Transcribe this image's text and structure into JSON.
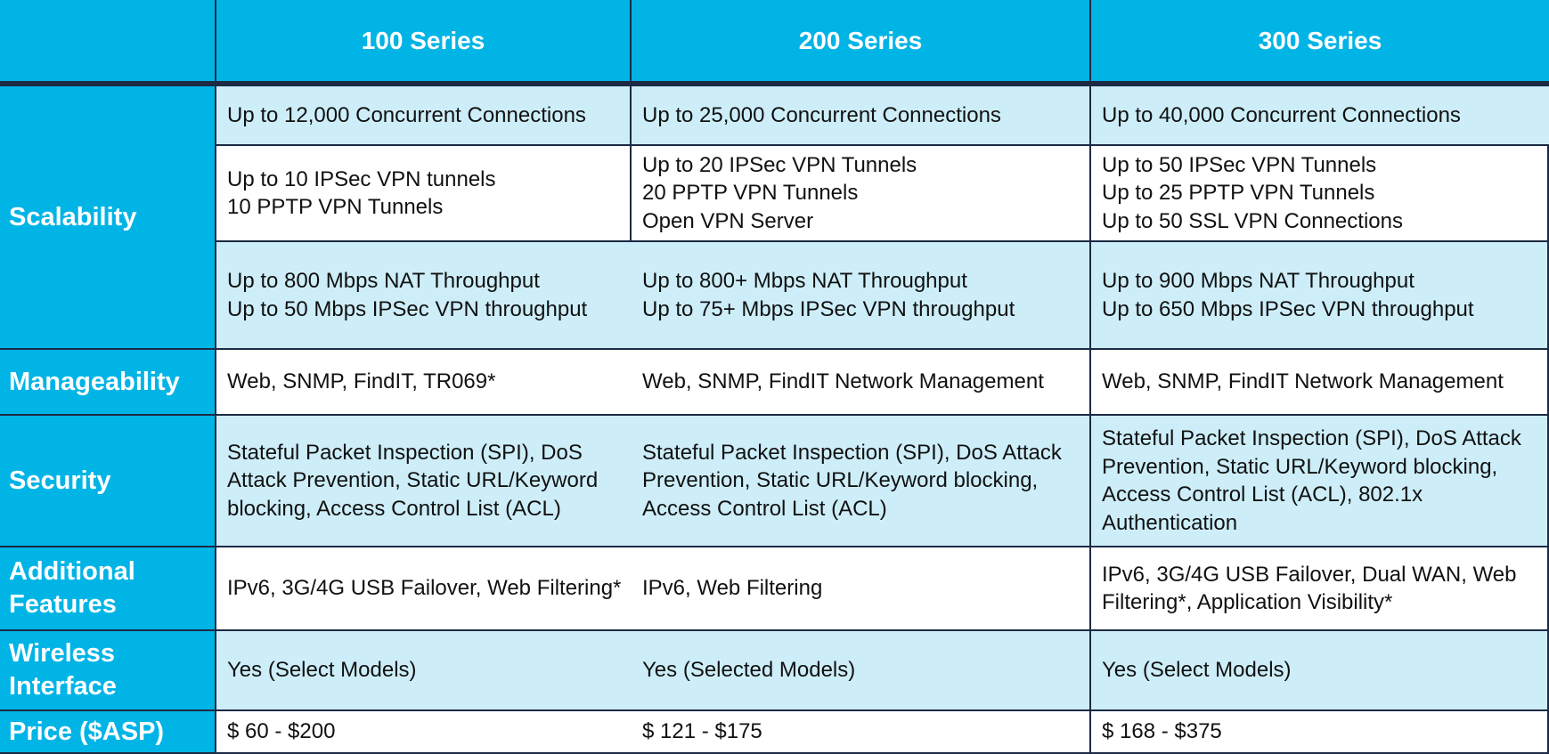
{
  "header": {
    "corner": "",
    "col1": "100 Series",
    "col2": "200 Series",
    "col3": "300 Series"
  },
  "rows": {
    "scalability": {
      "label": "Scalability",
      "connections": [
        "Up to 12,000 Concurrent Connections",
        "Up to 25,000 Concurrent Connections",
        "Up to 40,000 Concurrent Connections"
      ],
      "vpn": [
        [
          "Up to 10 IPSec VPN tunnels",
          "10 PPTP VPN Tunnels"
        ],
        [
          "Up to 20 IPSec VPN Tunnels",
          "20 PPTP VPN Tunnels",
          "Open VPN Server"
        ],
        [
          "Up to 50 IPSec VPN Tunnels",
          "Up to 25 PPTP VPN Tunnels",
          "Up to 50 SSL VPN Connections"
        ]
      ],
      "throughput": [
        [
          "Up to 800 Mbps NAT Throughput",
          "Up to 50 Mbps IPSec VPN throughput"
        ],
        [
          "Up to 800+ Mbps NAT Throughput",
          "Up to 75+ Mbps IPSec VPN throughput"
        ],
        [
          "Up to 900 Mbps NAT Throughput",
          "Up to 650 Mbps IPSec VPN throughput"
        ]
      ]
    },
    "manageability": {
      "label": "Manageability",
      "values": [
        "Web, SNMP, FindIT, TR069*",
        "Web, SNMP, FindIT Network Management",
        "Web, SNMP, FindIT Network Management"
      ]
    },
    "security": {
      "label": "Security",
      "values": [
        "Stateful Packet Inspection (SPI), DoS Attack Prevention, Static URL/Keyword blocking, Access Control List (ACL)",
        "Stateful Packet Inspection (SPI), DoS Attack Prevention, Static URL/Keyword blocking, Access Control List (ACL)",
        "Stateful Packet Inspection (SPI), DoS Attack Prevention, Static URL/Keyword blocking, Access Control List (ACL), 802.1x Authentication"
      ]
    },
    "additional": {
      "label": "Additional Features",
      "values": [
        "IPv6, 3G/4G USB Failover, Web Filtering*",
        "IPv6, Web Filtering",
        "IPv6, 3G/4G USB Failover, Dual WAN, Web Filtering*, Application Visibility*"
      ]
    },
    "wireless": {
      "label": "Wireless Interface",
      "values": [
        "Yes (Select Models)",
        "Yes (Selected Models)",
        "Yes (Select Models)"
      ]
    },
    "price": {
      "label": "Price ($ASP)",
      "values": [
        "$ 60 - $200",
        "$ 121 - $175",
        "$ 168 - $375"
      ]
    }
  },
  "colors": {
    "header_bg": "#00b4e6",
    "row_light": "#cdeef9",
    "row_white": "#ffffff",
    "border": "#1c2a44"
  }
}
